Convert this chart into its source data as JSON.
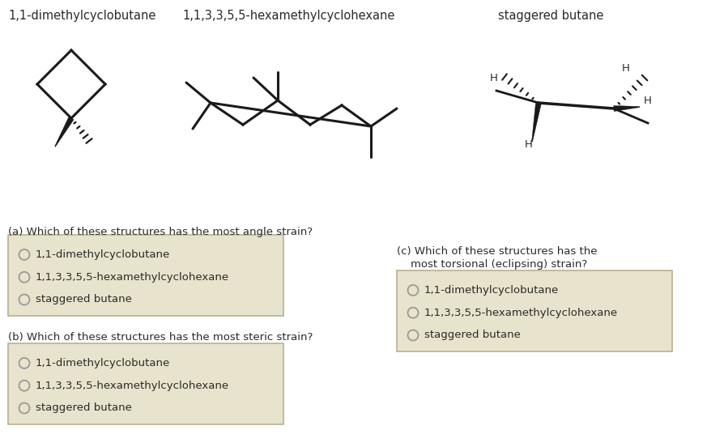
{
  "bg_color": "#ffffff",
  "text_color": "#2a2a2a",
  "box_bg_color": "#e8e3cc",
  "box_edge_color": "#b8b090",
  "title1": "1,1-dimethylcyclobutane",
  "title2": "1,1,3,3,5,5-hexamethylcyclohexane",
  "title3": "staggered butane",
  "q_a": "(a) Which of these structures has the most angle strain?",
  "q_b": "(b) Which of these structures has the most steric strain?",
  "q_c_line1": "(c) Which of these structures has the",
  "q_c_line2": "    most torsional (eclipsing) strain?",
  "options": [
    "1,1-dimethylcyclobutane",
    "1,1,3,3,5,5-hexamethylcyclohexane",
    "staggered butane"
  ],
  "font_size_title": 10.5,
  "font_size_question": 9.5,
  "font_size_option": 9.5
}
